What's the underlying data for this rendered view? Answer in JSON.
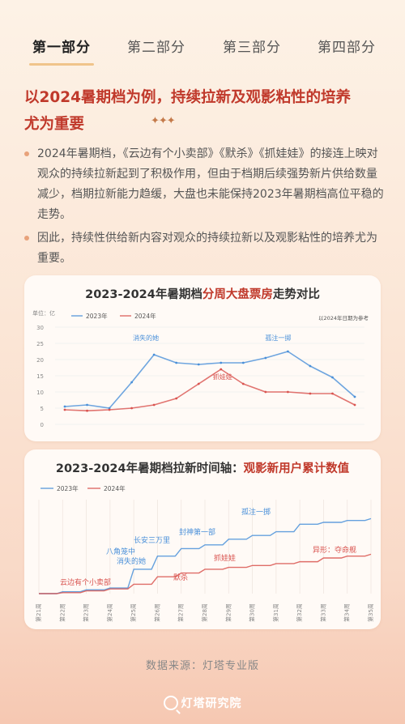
{
  "tabs": [
    {
      "label": "第一部分",
      "active": true
    },
    {
      "label": "第二部分",
      "active": false
    },
    {
      "label": "第三部分",
      "active": false
    },
    {
      "label": "第四部分",
      "active": false
    }
  ],
  "headline": {
    "line1": "以2024暑期档为例，持续拉新及观影粘性的培养",
    "line2": "尤为重要",
    "sparkle": "✦✦✦"
  },
  "bullets": [
    "2024年暑期档，《云边有个小卖部》《默杀》《抓娃娃》的接连上映对观众的持续拉新起到了积极作用，但由于档期后续强势新片供给数量减少，档期拉新能力趋缓，大盘也未能保持2023年暑期档高位平稳的走势。",
    "因此，持续性供给新内容对观众的持续拉新以及观影粘性的培养尤为重要。"
  ],
  "chart_data": [
    {
      "type": "line",
      "title_prefix": "2023-2024年暑期档",
      "title_highlight": "分周大盘票房",
      "title_suffix": "走势对比",
      "unit_label": "单位：亿",
      "note": "以2024年日期为参考",
      "ylim": [
        0,
        30
      ],
      "yticks": [
        0,
        5,
        10,
        15,
        20,
        25,
        30
      ],
      "grid": true,
      "legend": "top-left",
      "colors": {
        "2023年": "#4a90d9",
        "2024年": "#d9534f"
      },
      "series": [
        {
          "name": "2023年",
          "values": [
            5.5,
            6,
            5,
            13,
            21.5,
            19,
            18.5,
            19,
            19,
            20.5,
            22.5,
            18,
            14.5,
            8.5
          ]
        },
        {
          "name": "2024年",
          "values": [
            4.5,
            4.2,
            4.5,
            5,
            6,
            8,
            12.5,
            17,
            12.5,
            10,
            10,
            9.5,
            9.5,
            6
          ]
        }
      ],
      "annotations": [
        {
          "text": "消失的她",
          "series": "2023年",
          "index": 4
        },
        {
          "text": "孤注一掷",
          "series": "2023年",
          "index": 10
        },
        {
          "text": "抓娃娃",
          "series": "2024年",
          "index": 7
        }
      ]
    },
    {
      "type": "line",
      "title_prefix": "2023-2024年暑期档拉新时间轴：",
      "title_highlight": "观影新用户累计数值",
      "legend": "top-left",
      "colors": {
        "2023年": "#4a90d9",
        "2024年": "#d9534f"
      },
      "categories": [
        "第21周",
        "第22周",
        "第23周",
        "第24周",
        "第25周",
        "第26周",
        "第27周",
        "第28周",
        "第29周",
        "第30周",
        "第31周",
        "第32周",
        "第33周",
        "第34周",
        "第35周"
      ],
      "series": [
        {
          "name": "2023年",
          "values": [
            0,
            2,
            4,
            6,
            26,
            40,
            48,
            52,
            58,
            62,
            66,
            74,
            76,
            78,
            80
          ]
        },
        {
          "name": "2024年",
          "values": [
            0,
            1,
            3,
            5,
            10,
            18,
            22,
            26,
            28,
            30,
            32,
            34,
            38,
            40,
            42
          ]
        }
      ],
      "annotations": [
        {
          "text": "云边有个小卖部",
          "series": "2024年"
        },
        {
          "text": "消失的她",
          "series": "2023年"
        },
        {
          "text": "八角笼中",
          "series": "2023年"
        },
        {
          "text": "长安三万里",
          "series": "2023年"
        },
        {
          "text": "封神第一部",
          "series": "2023年"
        },
        {
          "text": "孤注一掷",
          "series": "2023年"
        },
        {
          "text": "默杀",
          "series": "2024年"
        },
        {
          "text": "抓娃娃",
          "series": "2024年"
        },
        {
          "text": "异形：夺命舰",
          "series": "2024年"
        }
      ]
    }
  ],
  "source": "数据来源：灯塔专业版",
  "brand": "灯塔研究院"
}
